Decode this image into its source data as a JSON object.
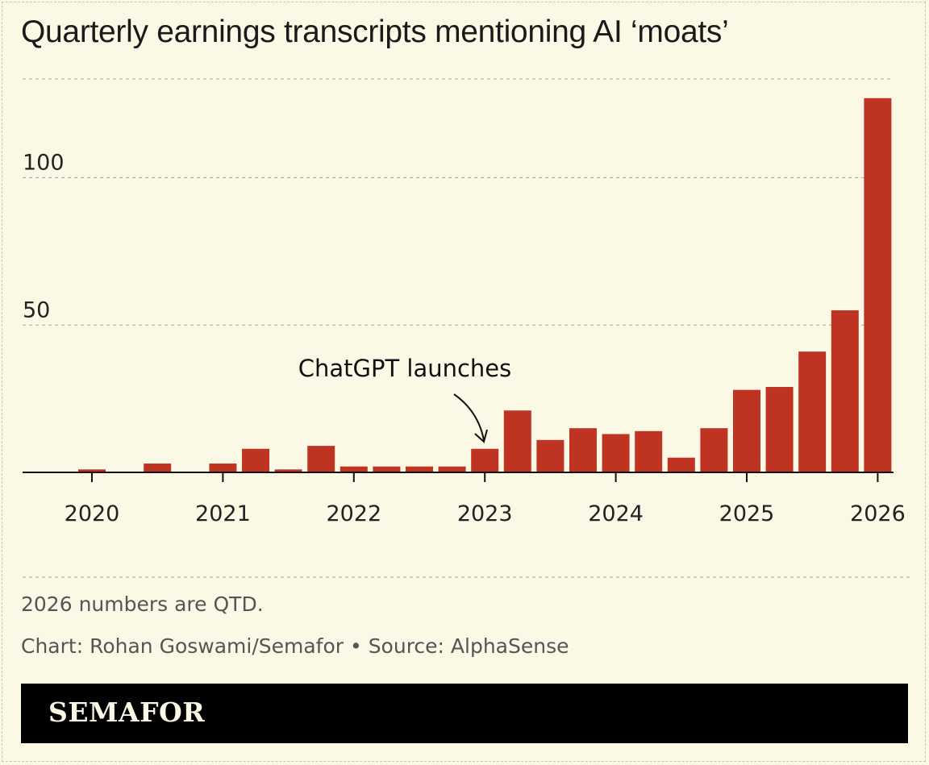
{
  "chart_data": {
    "type": "bar",
    "title": "Quarterly earnings transcripts mentioning AI ‘moats’",
    "categories": [
      "2020 Q1",
      "2020 Q2",
      "2020 Q3",
      "2020 Q4",
      "2021 Q1",
      "2021 Q2",
      "2021 Q3",
      "2021 Q4",
      "2022 Q1",
      "2022 Q2",
      "2022 Q3",
      "2022 Q4",
      "2023 Q1",
      "2023 Q2",
      "2023 Q3",
      "2023 Q4",
      "2024 Q1",
      "2024 Q2",
      "2024 Q3",
      "2024 Q4",
      "2025 Q1",
      "2025 Q2",
      "2025 Q3",
      "2025 Q4",
      "2026 Q1"
    ],
    "values": [
      1,
      0,
      3,
      0,
      3,
      8,
      1,
      9,
      2,
      2,
      2,
      2,
      8,
      21,
      11,
      15,
      13,
      14,
      5,
      15,
      28,
      29,
      41,
      55,
      127
    ],
    "x_tick_labels": [
      "2020",
      "2021",
      "2022",
      "2023",
      "2024",
      "2025",
      "2026"
    ],
    "y_tick_labels": [
      "50",
      "100"
    ],
    "y_ticks": [
      50,
      100
    ],
    "ylim": [
      0,
      133
    ],
    "grid": true,
    "bar_color": "#bf3323",
    "annotation": {
      "text": "ChatGPT launches",
      "target": "2023 Q1"
    },
    "xlabel": "",
    "ylabel": ""
  },
  "footnote": "2026 numbers are QTD.",
  "credit": "Chart: Rohan Goswami/Semafor • Source: AlphaSense",
  "brand": "SEMAFOR"
}
